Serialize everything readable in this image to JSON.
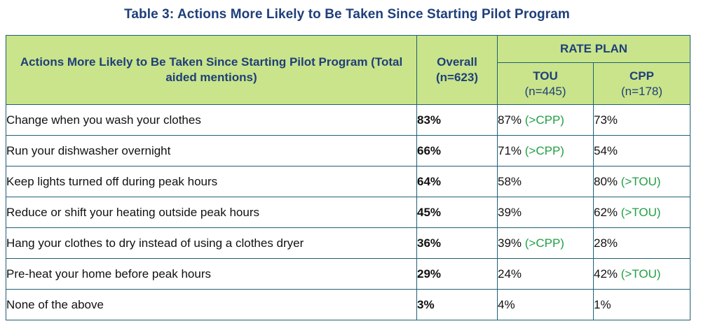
{
  "caption": "Table 3: Actions More Likely to Be Taken Since Starting Pilot Program",
  "header": {
    "action": "Actions More Likely to Be Taken Since Starting Pilot Program (Total aided mentions)",
    "overall": "Overall",
    "overall_n": "(n=623)",
    "rate_plan": "RATE PLAN",
    "tou": "TOU",
    "tou_n": "(n=445)",
    "cpp": "CPP",
    "cpp_n": "(n=178)"
  },
  "rows": [
    {
      "action": "Change when you wash your clothes",
      "overall": "83%",
      "tou": "87%",
      "tou_note": "(>CPP)",
      "cpp": "73%",
      "cpp_note": ""
    },
    {
      "action": "Run your dishwasher overnight",
      "overall": "66%",
      "tou": "71%",
      "tou_note": "(>CPP)",
      "cpp": "54%",
      "cpp_note": ""
    },
    {
      "action": "Keep lights turned off during peak hours",
      "overall": "64%",
      "tou": "58%",
      "tou_note": "",
      "cpp": "80%",
      "cpp_note": "(>TOU)"
    },
    {
      "action": "Reduce or shift your heating outside peak hours",
      "overall": "45%",
      "tou": "39%",
      "tou_note": "",
      "cpp": "62%",
      "cpp_note": "(>TOU)"
    },
    {
      "action": "Hang your clothes to dry instead of using a clothes dryer",
      "overall": "36%",
      "tou": "39%",
      "tou_note": "(>CPP)",
      "cpp": "28%",
      "cpp_note": ""
    },
    {
      "action": "Pre-heat your home before peak hours",
      "overall": "29%",
      "tou": "24%",
      "tou_note": "",
      "cpp": "42%",
      "cpp_note": "(>TOU)"
    },
    {
      "action": "None of the above",
      "overall": "3%",
      "tou": "4%",
      "tou_note": "",
      "cpp": "1%",
      "cpp_note": ""
    }
  ],
  "colors": {
    "header_bg": "#c9e48a",
    "header_text": "#1f3f7a",
    "border": "#1f5f75",
    "significance_note": "#22a045"
  }
}
